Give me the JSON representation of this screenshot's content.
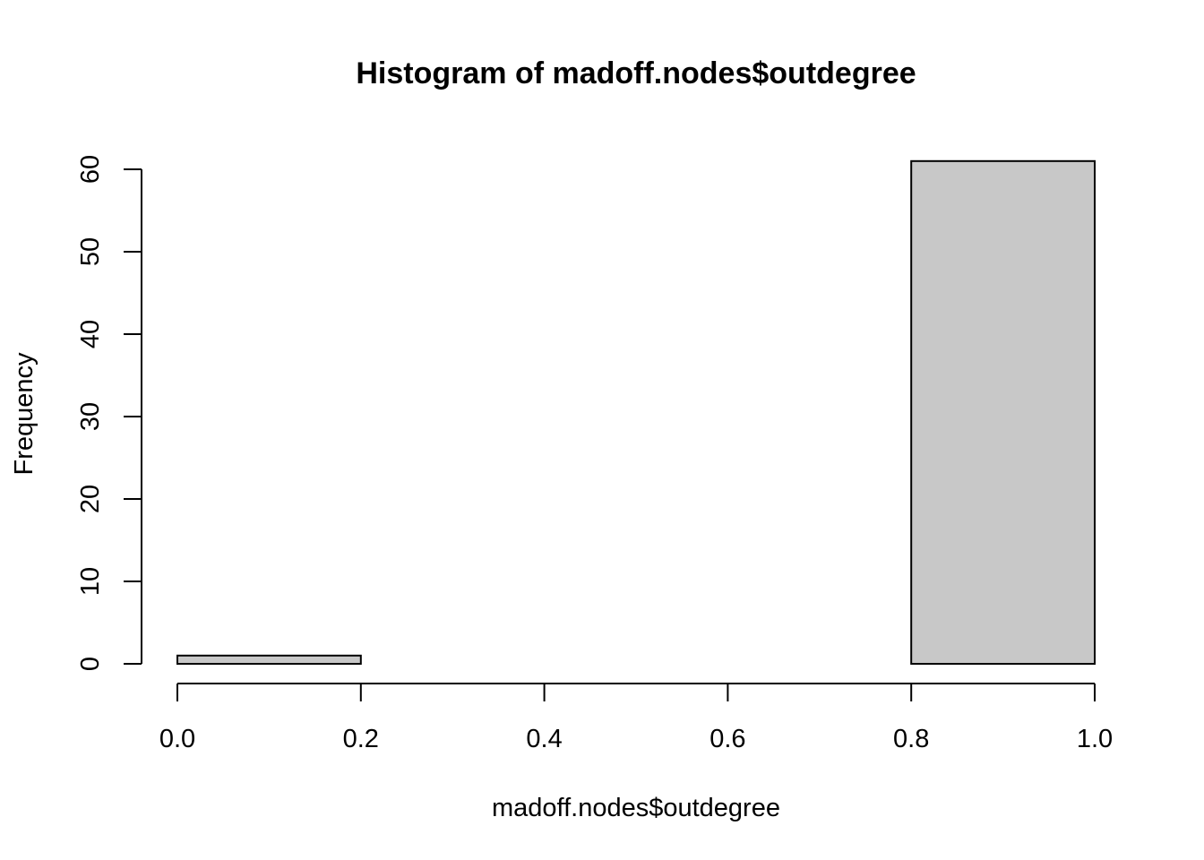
{
  "chart_data": {
    "type": "bar",
    "title": "Histogram of madoff.nodes$outdegree",
    "xlabel": "madoff.nodes$outdegree",
    "ylabel": "Frequency",
    "bins": [
      {
        "x0": 0.0,
        "x1": 0.2,
        "count": 1
      },
      {
        "x0": 0.2,
        "x1": 0.4,
        "count": 0
      },
      {
        "x0": 0.4,
        "x1": 0.6,
        "count": 0
      },
      {
        "x0": 0.6,
        "x1": 0.8,
        "count": 0
      },
      {
        "x0": 0.8,
        "x1": 1.0,
        "count": 61
      }
    ],
    "xlim": [
      0.0,
      1.0
    ],
    "ylim": [
      0,
      61
    ],
    "x_ticks": [
      {
        "value": 0.0,
        "label": "0.0"
      },
      {
        "value": 0.2,
        "label": "0.2"
      },
      {
        "value": 0.4,
        "label": "0.4"
      },
      {
        "value": 0.6,
        "label": "0.6"
      },
      {
        "value": 0.8,
        "label": "0.8"
      },
      {
        "value": 1.0,
        "label": "1.0"
      }
    ],
    "y_ticks": [
      {
        "value": 0,
        "label": "0"
      },
      {
        "value": 10,
        "label": "10"
      },
      {
        "value": 20,
        "label": "20"
      },
      {
        "value": 30,
        "label": "30"
      },
      {
        "value": 40,
        "label": "40"
      },
      {
        "value": 50,
        "label": "50"
      },
      {
        "value": 60,
        "label": "60"
      }
    ],
    "bar_color": "#c8c8c8",
    "grid": false,
    "legend": "none"
  }
}
